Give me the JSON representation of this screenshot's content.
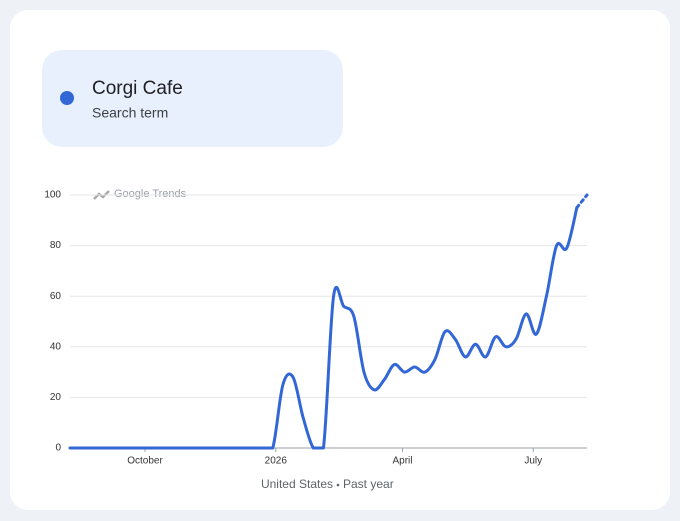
{
  "legend": {
    "term": "Corgi Cafe",
    "subtitle": "Search term",
    "color": "#3367d6"
  },
  "chart_data": {
    "type": "line",
    "watermark": "Google Trends",
    "x": [
      0,
      1,
      2,
      3,
      4,
      5,
      6,
      7,
      8,
      9,
      10,
      11,
      12,
      13,
      14,
      15,
      16,
      17,
      18,
      19,
      20,
      21,
      22,
      23,
      24,
      25,
      26,
      27,
      28,
      29,
      30,
      31,
      32,
      33,
      34,
      35,
      36,
      37,
      38,
      39,
      40,
      41,
      42,
      43,
      44,
      45,
      46,
      47,
      48,
      49,
      50,
      51
    ],
    "series": [
      {
        "name": "Corgi Cafe",
        "color": "#3367d6",
        "values": [
          0,
          0,
          0,
          0,
          0,
          0,
          0,
          0,
          0,
          0,
          0,
          0,
          0,
          0,
          0,
          0,
          0,
          0,
          0,
          0,
          0,
          25,
          28,
          12,
          0,
          0,
          60,
          56,
          52,
          30,
          23,
          27,
          33,
          30,
          32,
          30,
          35,
          46,
          43,
          36,
          41,
          36,
          44,
          40,
          43,
          53,
          45,
          60,
          80,
          79,
          95,
          100
        ]
      }
    ],
    "partial_last": true,
    "xlim": [
      0,
      51
    ],
    "xticks": [
      {
        "value": 7.4,
        "label": "October"
      },
      {
        "value": 20.3,
        "label": "2026"
      },
      {
        "value": 32.8,
        "label": "April"
      },
      {
        "value": 45.7,
        "label": "July"
      }
    ],
    "ylim": [
      0,
      100
    ],
    "yticks": [
      0,
      20,
      40,
      60,
      80,
      100
    ],
    "grid": true
  },
  "footer": {
    "region": "United States",
    "period": "Past year"
  }
}
